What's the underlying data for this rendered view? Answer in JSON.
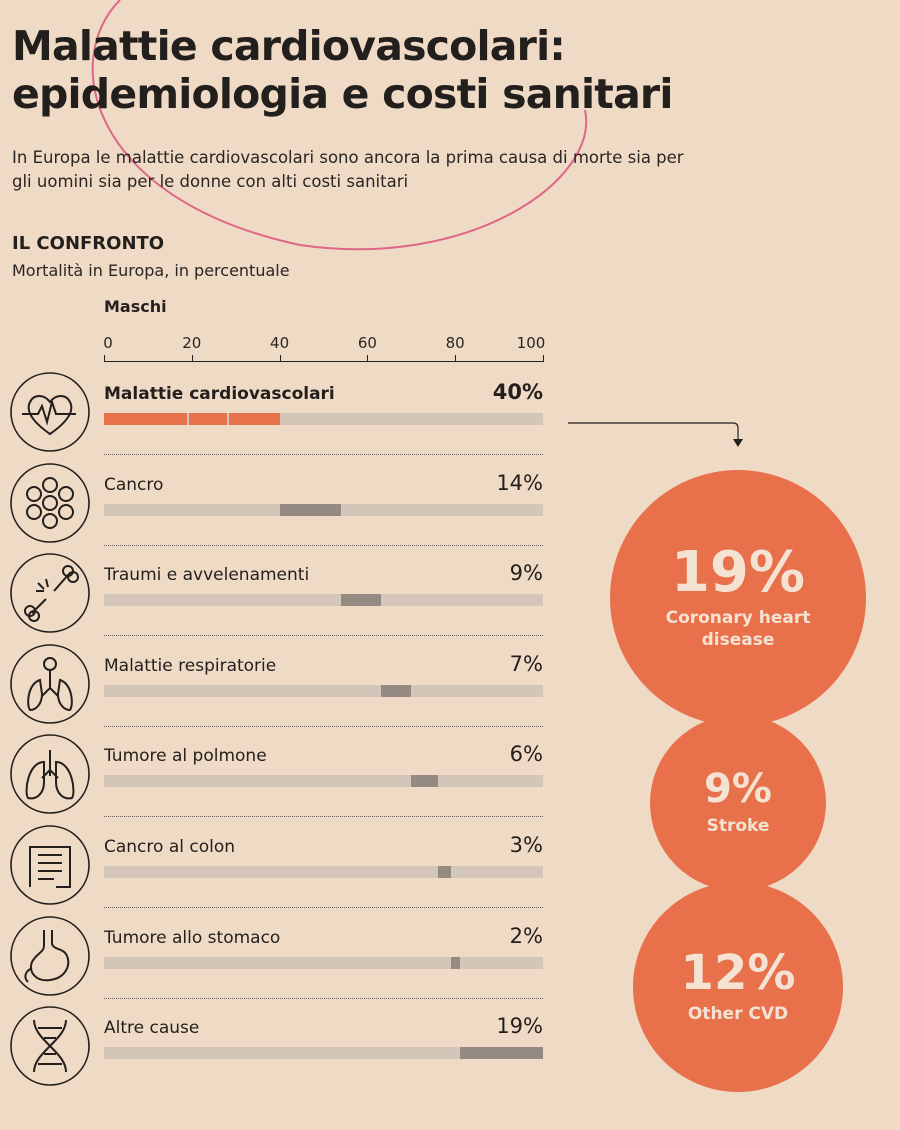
{
  "header": {
    "title_line1": "Malattie cardiovascolari:",
    "title_line2": "epidemiologia e costi sanitari",
    "subtitle": "In Europa le malattie cardiovascolari sono ancora la prima causa di morte sia per gli uomini sia per le donne con alti costi sanitari"
  },
  "section": {
    "title": "IL CONFRONTO",
    "subtitle": "Mortalità in Europa, in percentuale",
    "group": "Maschi"
  },
  "colors": {
    "accent": "#e8714b",
    "track": "#d3c5b8",
    "highlight": "#958a82",
    "background": "#efdac6"
  },
  "chart_data": {
    "type": "bar",
    "subtype": "waterfall-horizontal",
    "xlim": [
      0,
      100
    ],
    "ticks": [
      "0",
      "20",
      "40",
      "60",
      "80",
      "100"
    ],
    "categories": [
      "Malattie cardiovascolari",
      "Cancro",
      "Traumi e avvelenamenti",
      "Malattie respiratorie",
      "Tumore al polmone",
      "Cancro al colon",
      "Tumore allo stomaco",
      "Altre cause"
    ],
    "values": [
      40,
      14,
      9,
      7,
      6,
      3,
      2,
      19
    ],
    "labels": [
      "40%",
      "14%",
      "9%",
      "7%",
      "6%",
      "3%",
      "2%",
      "19%"
    ],
    "icons": [
      "heart-pulse-icon",
      "cells-icon",
      "broken-bone-icon",
      "respiratory-icon",
      "lungs-icon",
      "intestine-icon",
      "stomach-icon",
      "dna-icon"
    ],
    "breakdown": {
      "of": "Malattie cardiovascolari",
      "items": [
        {
          "value": 19,
          "label": "19%",
          "name": "Coronary heart disease"
        },
        {
          "value": 9,
          "label": "9%",
          "name": "Stroke"
        },
        {
          "value": 12,
          "label": "12%",
          "name": "Other CVD"
        }
      ]
    }
  }
}
